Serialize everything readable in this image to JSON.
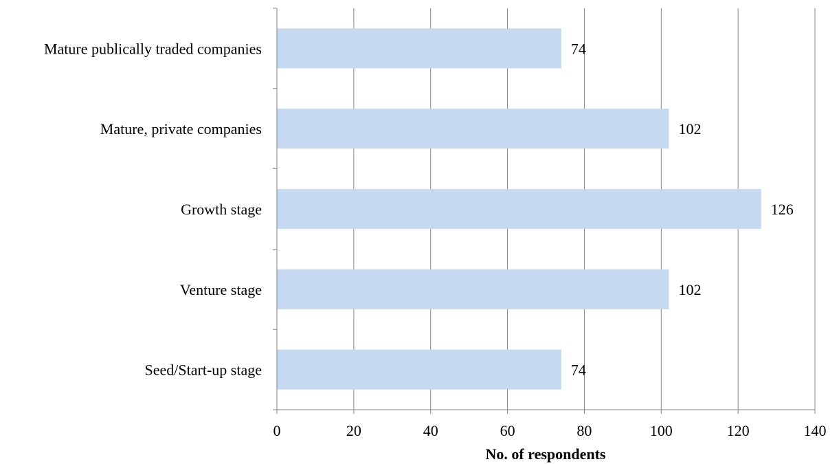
{
  "chart_data": {
    "type": "bar",
    "orientation": "horizontal",
    "categories": [
      "Mature publically traded companies",
      "Mature, private companies",
      "Growth stage",
      "Venture stage",
      "Seed/Start-up stage"
    ],
    "values": [
      74,
      102,
      126,
      102,
      74
    ],
    "data_labels": [
      "74",
      "102",
      "126",
      "102",
      "74"
    ],
    "title": "",
    "xlabel": "No. of respondents",
    "ylabel": "",
    "xlim": [
      0,
      140
    ],
    "x_ticks": [
      0,
      20,
      40,
      60,
      80,
      100,
      120,
      140
    ],
    "grid": "vertical",
    "legend": "none",
    "bar_color": "#c5d9f1",
    "grid_color": "#868686",
    "axis_color": "#868686"
  }
}
